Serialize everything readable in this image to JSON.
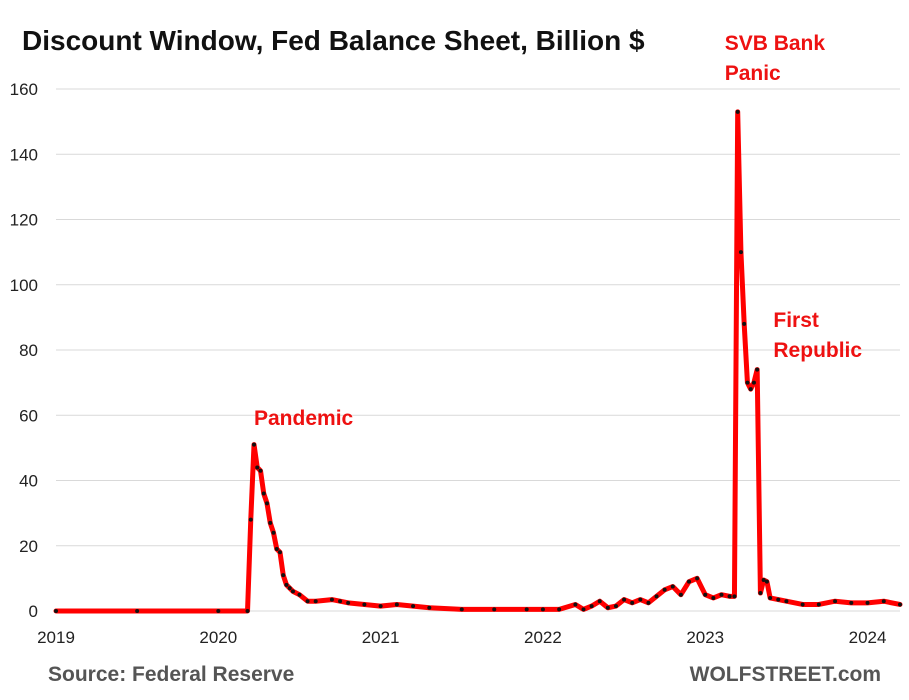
{
  "chart_data": {
    "type": "line",
    "title": "Discount Window, Fed Balance Sheet, Billion $",
    "xlabel": "",
    "ylabel": "",
    "xlim": [
      2019.0,
      2024.2
    ],
    "ylim": [
      0,
      160
    ],
    "yticks": [
      0,
      20,
      40,
      60,
      80,
      100,
      120,
      140,
      160
    ],
    "xticks": [
      2019,
      2020,
      2021,
      2022,
      2023,
      2024
    ],
    "xtick_labels": [
      "2019",
      "2020",
      "2021",
      "2022",
      "2023",
      "2024"
    ],
    "grid": true,
    "series": [
      {
        "name": "Discount Window",
        "color": "#ff0000",
        "marker_color": "#111111",
        "x": [
          2019.0,
          2019.5,
          2020.0,
          2020.18,
          2020.2,
          2020.22,
          2020.24,
          2020.26,
          2020.28,
          2020.3,
          2020.32,
          2020.34,
          2020.36,
          2020.38,
          2020.4,
          2020.42,
          2020.44,
          2020.46,
          2020.5,
          2020.55,
          2020.6,
          2020.7,
          2020.75,
          2020.8,
          2020.9,
          2021.0,
          2021.1,
          2021.2,
          2021.3,
          2021.5,
          2021.7,
          2021.9,
          2022.0,
          2022.1,
          2022.2,
          2022.25,
          2022.3,
          2022.35,
          2022.4,
          2022.45,
          2022.5,
          2022.55,
          2022.6,
          2022.65,
          2022.7,
          2022.75,
          2022.8,
          2022.85,
          2022.9,
          2022.95,
          2023.0,
          2023.05,
          2023.1,
          2023.15,
          2023.18,
          2023.2,
          2023.22,
          2023.24,
          2023.26,
          2023.28,
          2023.3,
          2023.32,
          2023.34,
          2023.36,
          2023.38,
          2023.4,
          2023.45,
          2023.5,
          2023.6,
          2023.7,
          2023.8,
          2023.9,
          2024.0,
          2024.1,
          2024.2
        ],
        "values": [
          0,
          0,
          0,
          0,
          28,
          51,
          44,
          43,
          36,
          33,
          27,
          24,
          19,
          18,
          11,
          8,
          7,
          6,
          5,
          3,
          3,
          3.5,
          3,
          2.5,
          2,
          1.5,
          2,
          1.5,
          1,
          0.5,
          0.5,
          0.5,
          0.5,
          0.5,
          2,
          0.5,
          1.5,
          3,
          1,
          1.5,
          3.5,
          2.5,
          3.5,
          2.5,
          4.5,
          6.5,
          7.5,
          5,
          9,
          10,
          5,
          4,
          5,
          4.5,
          4.5,
          153,
          110,
          88,
          70,
          68,
          70,
          74,
          5.5,
          9.5,
          9,
          4,
          3.5,
          3,
          2,
          2,
          3,
          2.5,
          2.5,
          3,
          2
        ]
      }
    ],
    "annotations": [
      {
        "lines": [
          "Pandemic"
        ],
        "x": 2020.22,
        "y": 57
      },
      {
        "lines": [
          "SVB Bank",
          "Panic"
        ],
        "x": 2023.12,
        "y": 172
      },
      {
        "lines": [
          "First",
          "Republic"
        ],
        "x": 2023.42,
        "y": 87
      }
    ]
  },
  "footer": {
    "source": "Source: Federal Reserve",
    "brand": "WOLFSTREET.com"
  }
}
